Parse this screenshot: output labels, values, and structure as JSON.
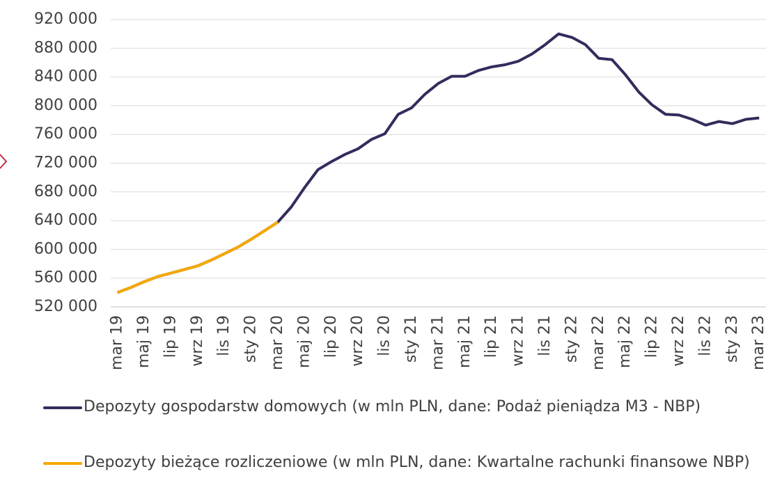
{
  "chart_data": {
    "type": "line",
    "categories": [
      "mar 19",
      null,
      "maj 19",
      null,
      "lip 19",
      null,
      "wrz 19",
      null,
      "lis 19",
      null,
      "sty 20",
      null,
      "mar 20",
      null,
      "maj 20",
      null,
      "lip 20",
      null,
      "wrz 20",
      null,
      "lis 20",
      null,
      "sty 21",
      null,
      "mar 21",
      null,
      "maj 21",
      null,
      "lip 21",
      null,
      "wrz 21",
      null,
      "lis 21",
      null,
      "sty 22",
      null,
      "mar 22",
      null,
      "maj 22",
      null,
      "lip 22",
      null,
      "wrz 22",
      null,
      "lis 22",
      null,
      "sty 23",
      null,
      "mar 23"
    ],
    "series": [
      {
        "name": "Depozyty gospodarstw domowych (w mln PLN, dane: Podaż pieniądza M3 - NBP)",
        "color": "#332c5c",
        "values": [
          540000,
          547000,
          555000,
          562000,
          567000,
          572000,
          577000,
          585000,
          594000,
          603000,
          614000,
          626000,
          638000,
          659000,
          686000,
          711000,
          722000,
          732000,
          740000,
          753000,
          761000,
          788000,
          797000,
          816000,
          831000,
          841000,
          841000,
          849000,
          854000,
          857000,
          862000,
          872000,
          885000,
          900000,
          895000,
          885000,
          866000,
          864000,
          843000,
          819000,
          801000,
          788000,
          787000,
          781000,
          773000,
          778000,
          775000,
          781000,
          783000
        ]
      },
      {
        "name": "Depozyty bieżące rozliczeniowe (w mln PLN, dane: Kwartalne rachunki finansowe NBP)",
        "color": "#f5a800",
        "values": [
          540000,
          547000,
          555000,
          562000,
          567000,
          572000,
          577000,
          585000,
          594000,
          603000,
          614000,
          626000,
          638000,
          null,
          null,
          null,
          null,
          null,
          null,
          null,
          null,
          null,
          null,
          null,
          null,
          null,
          null,
          null,
          null,
          null,
          null,
          null,
          null,
          null,
          null,
          null,
          null,
          null,
          null,
          null,
          null,
          null,
          null,
          null,
          null,
          null,
          null,
          null,
          null
        ]
      }
    ],
    "ylim": [
      520000,
      920000
    ],
    "yticks": [
      {
        "value": 520000,
        "label": "520 000"
      },
      {
        "value": 560000,
        "label": "560 000"
      },
      {
        "value": 600000,
        "label": "600 000"
      },
      {
        "value": 640000,
        "label": "640 000"
      },
      {
        "value": 680000,
        "label": "680 000"
      },
      {
        "value": 720000,
        "label": "720 000"
      },
      {
        "value": 760000,
        "label": "760 000"
      },
      {
        "value": 800000,
        "label": "800 000"
      },
      {
        "value": 840000,
        "label": "840 000"
      },
      {
        "value": 880000,
        "label": "880 000"
      },
      {
        "value": 920000,
        "label": "920 000"
      }
    ],
    "grid": true
  }
}
